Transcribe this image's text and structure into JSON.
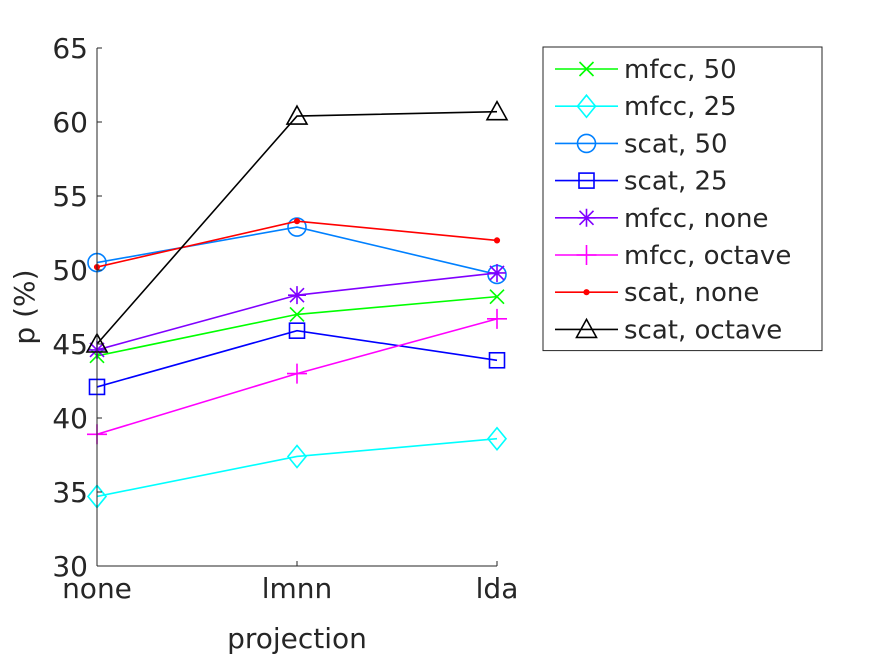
{
  "chart_data": {
    "type": "line",
    "title": "",
    "xlabel": "projection",
    "ylabel": "p (%)",
    "categories": [
      "none",
      "lmnn",
      "lda"
    ],
    "ylim": [
      30,
      65
    ],
    "yticks": [
      30,
      35,
      40,
      45,
      50,
      55,
      60,
      65
    ],
    "grid": false,
    "legend_position": "outside-right",
    "series": [
      {
        "name": "mfcc, 50",
        "values": [
          44.2,
          47.0,
          48.2
        ],
        "color": "#00ff00",
        "marker": "x"
      },
      {
        "name": "mfcc, 25",
        "values": [
          34.7,
          37.4,
          38.6
        ],
        "color": "#00ffff",
        "marker": "diamond"
      },
      {
        "name": "scat, 50",
        "values": [
          50.5,
          52.9,
          49.7
        ],
        "color": "#0080ff",
        "marker": "circle"
      },
      {
        "name": "scat, 25",
        "values": [
          42.1,
          45.9,
          43.9
        ],
        "color": "#0000ff",
        "marker": "square"
      },
      {
        "name": "mfcc, none",
        "values": [
          44.6,
          48.3,
          49.8
        ],
        "color": "#8000ff",
        "marker": "asterisk"
      },
      {
        "name": "mfcc, octave",
        "values": [
          38.9,
          43.0,
          46.7
        ],
        "color": "#ff00ff",
        "marker": "plus"
      },
      {
        "name": "scat, none",
        "values": [
          50.2,
          53.3,
          52.0
        ],
        "color": "#ff0000",
        "marker": "dot"
      },
      {
        "name": "scat, octave",
        "values": [
          45.0,
          60.4,
          60.7
        ],
        "color": "#000000",
        "marker": "triangle"
      }
    ]
  }
}
